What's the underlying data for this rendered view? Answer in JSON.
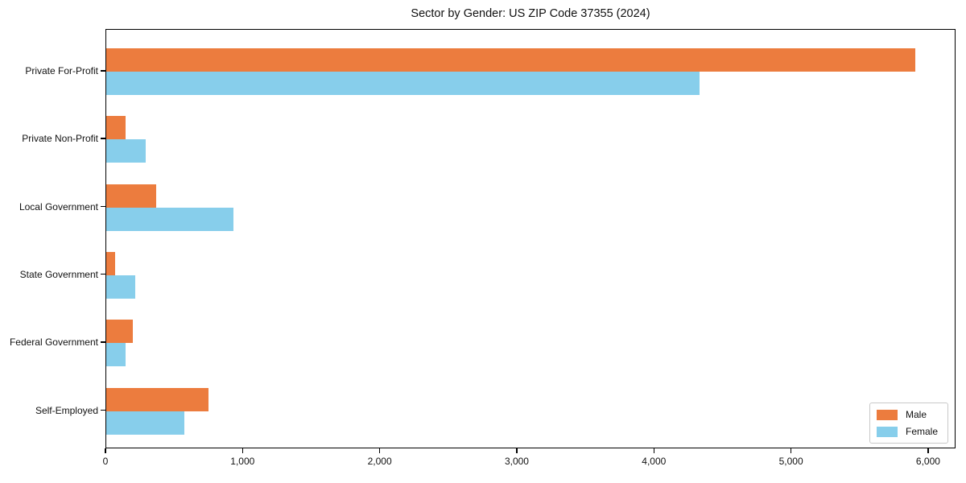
{
  "page": {
    "title": "Sector by Gender: US ZIP Code 37355 (2024)"
  },
  "chart_data": {
    "type": "bar",
    "orientation": "horizontal",
    "title": "Sector by Gender: US ZIP Code 37355 (2024)",
    "categories": [
      "Private For-Profit",
      "Private Non-Profit",
      "Local Government",
      "State Government",
      "Federal Government",
      "Self-Employed"
    ],
    "series": [
      {
        "name": "Male",
        "color": "#ec7c3e",
        "values": [
          5900,
          140,
          365,
          65,
          195,
          745
        ]
      },
      {
        "name": "Female",
        "color": "#87ceeb",
        "values": [
          4330,
          290,
          930,
          210,
          140,
          570
        ]
      }
    ],
    "xlabel": "",
    "ylabel": "",
    "xlim": [
      0,
      6200
    ],
    "xticks": [
      0,
      1000,
      2000,
      3000,
      4000,
      5000,
      6000
    ],
    "xtick_labels": [
      "0",
      "1,000",
      "2,000",
      "3,000",
      "4,000",
      "5,000",
      "6,000"
    ],
    "legend_position": "lower right",
    "grid": false
  },
  "colors": {
    "male": "#ec7c3e",
    "female": "#87ceeb",
    "spine": "#000000",
    "text": "#111111",
    "legend_border": "#c9c9c9"
  }
}
